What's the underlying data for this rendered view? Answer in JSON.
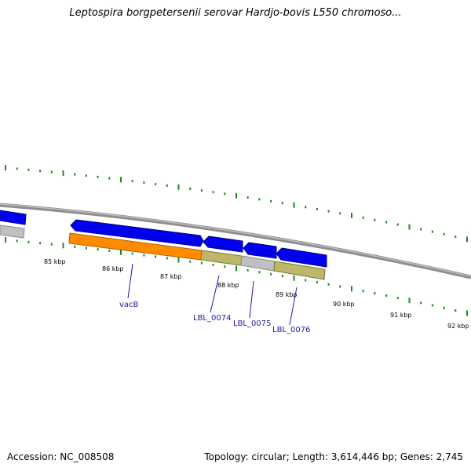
{
  "title": "Leptospira borgpetersenii serovar Hardjo-bovis L550 chromoso...",
  "footer": {
    "accession": "Accession: NC_008508",
    "topology": "Topology: circular; Length: 3,614,446 bp; Genes: 2,745"
  },
  "colors": {
    "backbone": "#8c8c8c",
    "cds": "#0000ee",
    "orange_feature": "#ff8c00",
    "olive_feature": "#bdb76b",
    "gray_feature": "#c0c0c0",
    "tick": "#1a8c1a",
    "gene_label": "#1a1aa6"
  },
  "scale_labels": [
    "85 kbp",
    "86 kbp",
    "87 kbp",
    "88 kbp",
    "89 kbp",
    "90 kbp",
    "91 kbp",
    "92 kbp"
  ],
  "gene_labels": [
    "vacB",
    "LBL_0074",
    "LBL_0075",
    "LBL_0076"
  ]
}
